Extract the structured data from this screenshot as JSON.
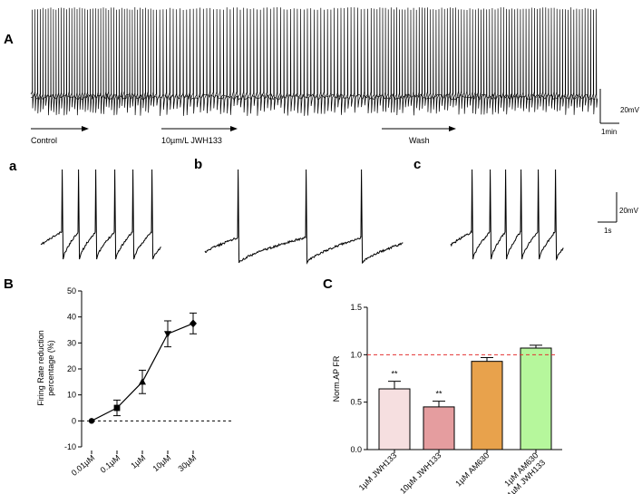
{
  "panels": {
    "A": "A",
    "a": "a",
    "b": "b",
    "c": "c",
    "B": "B",
    "C": "C"
  },
  "trace_annotations": {
    "control": "Control",
    "jwh": "10µm/L JWH133",
    "wash": "Wash",
    "scale_v_top": "20mV",
    "scale_t_top": "1min",
    "scale_v_bottom": "20mV",
    "scale_t_bottom": "1s"
  },
  "colors": {
    "trace": "#000000",
    "bar_1": "#f6dfe0",
    "bar_2": "#e59d9f",
    "bar_3": "#e8a24c",
    "bar_4": "#b6f79c",
    "reference_line": "#e23232"
  },
  "chart_data": [
    {
      "id": "B",
      "type": "line",
      "ylabel": "Firing Rate reduction percentage (%)",
      "ylabel_lines": [
        "Firing Rate reduction",
        "percentage (%)"
      ],
      "xlabel": "",
      "categories": [
        "0.01µM",
        "0.1µM",
        "1µM",
        "10µM",
        "30µM"
      ],
      "values": [
        0,
        5,
        15,
        33.5,
        37.5
      ],
      "errors": [
        0,
        3,
        4.5,
        5,
        4
      ],
      "markers": [
        "circle",
        "square",
        "triangle",
        "triangle-down",
        "diamond"
      ],
      "ylim": [
        -10,
        50
      ],
      "yticks": [
        -10,
        0,
        10,
        20,
        30,
        40,
        50
      ],
      "reference_line": 0
    },
    {
      "id": "C",
      "type": "bar",
      "ylabel": "Norm.AP FR",
      "categories": [
        "1µM JWH133",
        "10µM JWH133",
        "1µM AM630",
        "1µM AM630 1µM JWH133"
      ],
      "category_lines": [
        [
          "1µM JWH133"
        ],
        [
          "10µM JWH133"
        ],
        [
          "1µM AM630"
        ],
        [
          "1µM AM630",
          "1µM JWH133"
        ]
      ],
      "values": [
        0.64,
        0.45,
        0.93,
        1.07
      ],
      "errors": [
        0.08,
        0.06,
        0.04,
        0.03
      ],
      "significance": [
        "**",
        "**",
        "",
        ""
      ],
      "ylim": [
        0,
        1.5
      ],
      "yticks": [
        0.0,
        0.5,
        1.0,
        1.5
      ],
      "reference_line": 1.0
    }
  ]
}
